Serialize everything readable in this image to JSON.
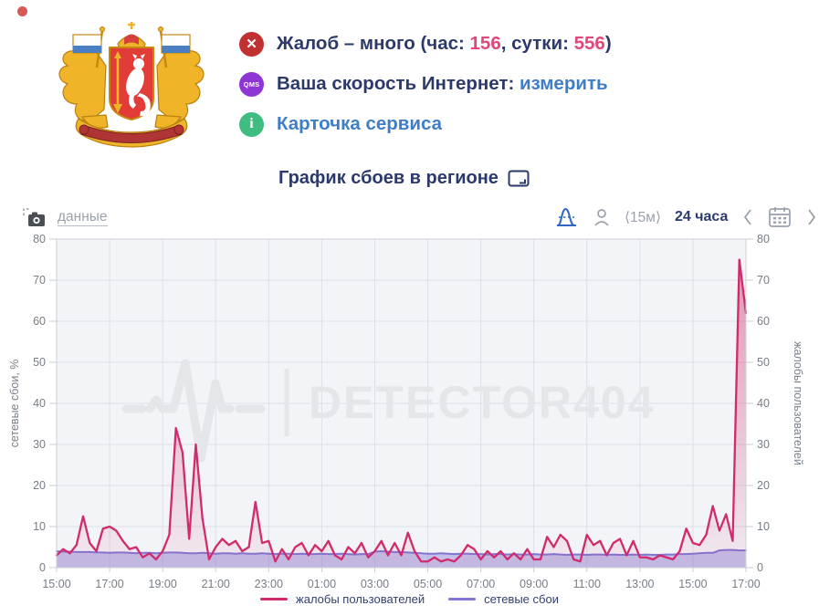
{
  "colors": {
    "navy_text": "#2b3a6b",
    "link_blue": "#3f7ec6",
    "pink_number": "#e2477b",
    "complaints_line": "#d02b6d",
    "failures_line": "#8176d4",
    "badge_red": "#c23131",
    "badge_purple": "#8e35d6",
    "badge_green": "#3fbc7f"
  },
  "header": {
    "complaints": {
      "badge_glyph": "✕",
      "prefix": "Жалоб – много (час: ",
      "hour_count": "156",
      "middle": ", сутки: ",
      "day_count": "556",
      "suffix": ")"
    },
    "speed": {
      "badge_text": "QMS",
      "label": "Ваша скорость Интернет: ",
      "link": "измерить"
    },
    "card": {
      "badge_glyph": "i",
      "link": "Карточка сервиса"
    }
  },
  "chart_header": {
    "title": "График сбоев в регионе"
  },
  "toolbar": {
    "data_label": "данные",
    "interval": "⟨15м⟩",
    "range": "24 часа"
  },
  "watermark": "DETECTOR404",
  "legend": [
    {
      "label": "жалобы пользователей",
      "color": "#d02b6d"
    },
    {
      "label": "сетевые сбои",
      "color": "#8176d4"
    }
  ],
  "chart_data": {
    "type": "line",
    "title": "График сбоев в регионе",
    "x_tick_labels": [
      "15:00",
      "17:00",
      "19:00",
      "21:00",
      "23:00",
      "01:00",
      "03:00",
      "05:00",
      "07:00",
      "09:00",
      "11:00",
      "13:00",
      "15:00",
      "17:00"
    ],
    "x_total_hours": 26,
    "points_interval_hours": 0.25,
    "ylim": [
      0,
      80
    ],
    "y_ticks": [
      0,
      10,
      20,
      30,
      40,
      50,
      60,
      70,
      80
    ],
    "ylabel_left": "сетевые сбои, %",
    "ylabel_right": "жалобы пользователей",
    "grid": true,
    "legend_position": "bottom",
    "series": [
      {
        "name": "жалобы пользователей",
        "axis": "right",
        "color": "#d02b6d",
        "fill": "gradient",
        "values": [
          3,
          4.5,
          3.5,
          5.5,
          12.5,
          6,
          4,
          9.5,
          10,
          9,
          6.5,
          4.5,
          5,
          2.5,
          3.5,
          2,
          4,
          8,
          34,
          28,
          7,
          30,
          12,
          2,
          5,
          7,
          5.5,
          6.5,
          4,
          5,
          16,
          6,
          6.5,
          1.5,
          4.5,
          2,
          5,
          6,
          3,
          5.5,
          4,
          6.5,
          3,
          2,
          5,
          3.5,
          6,
          2.5,
          4,
          6.5,
          3,
          6,
          3,
          8.5,
          4,
          1.5,
          1.5,
          2.5,
          1.5,
          2,
          1.5,
          3,
          5.5,
          4.5,
          2,
          4,
          2.5,
          4,
          2,
          3.5,
          2,
          4.5,
          2,
          2,
          7.5,
          5,
          8,
          6.5,
          2,
          1.5,
          8,
          5.5,
          6.5,
          3,
          6,
          7,
          3,
          6.5,
          2.5,
          2.5,
          2,
          3,
          2.5,
          2,
          4,
          9.5,
          6,
          5.5,
          8,
          15,
          9,
          13,
          6.5,
          75,
          62
        ]
      },
      {
        "name": "сетевые сбои",
        "axis": "left",
        "color": "#8176d4",
        "fill": "rgba(129,118,212,0.42)",
        "values": [
          4,
          3.9,
          3.9,
          3.8,
          3.8,
          3.8,
          3.7,
          3.7,
          3.6,
          3.7,
          3.7,
          3.6,
          3.5,
          3.6,
          3.6,
          3.5,
          3.6,
          3.7,
          3.7,
          3.6,
          3.5,
          3.5,
          3.6,
          3.5,
          3.4,
          3.5,
          3.5,
          3.4,
          3.5,
          3.4,
          3.4,
          3.5,
          3.4,
          3.3,
          3.4,
          3.4,
          3.3,
          3.4,
          3.3,
          3.3,
          3.4,
          3.3,
          3.3,
          3.4,
          3.3,
          3.2,
          3.3,
          3.3,
          3.9,
          4,
          3.9,
          3.8,
          3.8,
          3.7,
          3.6,
          3.5,
          3.4,
          3.4,
          3.5,
          3.4,
          3.3,
          3.4,
          3.4,
          3.3,
          3.3,
          3.2,
          3.3,
          3.3,
          3.2,
          3.3,
          3.2,
          3.2,
          3.3,
          3.2,
          3.2,
          3.3,
          3.2,
          3.1,
          3.2,
          3.2,
          3.1,
          3.2,
          3.2,
          3.1,
          3.2,
          3.1,
          3.1,
          3.2,
          3.1,
          3.2,
          3.1,
          3.1,
          3.2,
          3.2,
          3.3,
          3.3,
          3.4,
          3.5,
          3.6,
          3.6,
          4.2,
          4.3,
          4.3,
          4.2,
          4.2
        ]
      }
    ]
  }
}
